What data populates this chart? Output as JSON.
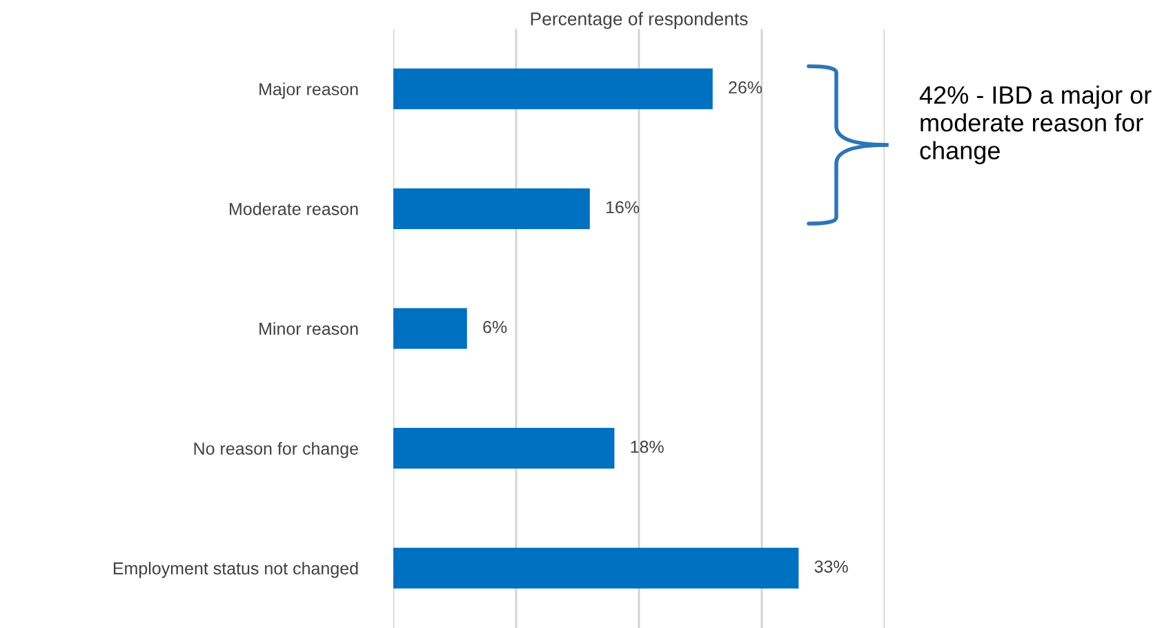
{
  "chart_data": {
    "type": "bar",
    "orientation": "horizontal",
    "xlabel": "Percentage of respondents",
    "categories": [
      "Major reason",
      "Moderate reason",
      "Minor reason",
      "No reason for change",
      "Employment status not changed"
    ],
    "values": [
      26,
      16,
      6,
      18,
      33
    ],
    "color": "#0070c0",
    "value_labels": [
      "26%",
      "16%",
      "6%",
      "18%",
      "33%"
    ],
    "xlim": [
      0,
      40
    ],
    "xticks": [
      {
        "value": 0,
        "label": null
      },
      {
        "value": 10,
        "label": null
      },
      {
        "value": 20,
        "label": null
      },
      {
        "value": 30,
        "label": null
      },
      {
        "value": 40,
        "label": null
      }
    ],
    "grid": "x",
    "legend": false,
    "annotations": [
      "42% - IBD a major or moderate reason for change"
    ]
  }
}
